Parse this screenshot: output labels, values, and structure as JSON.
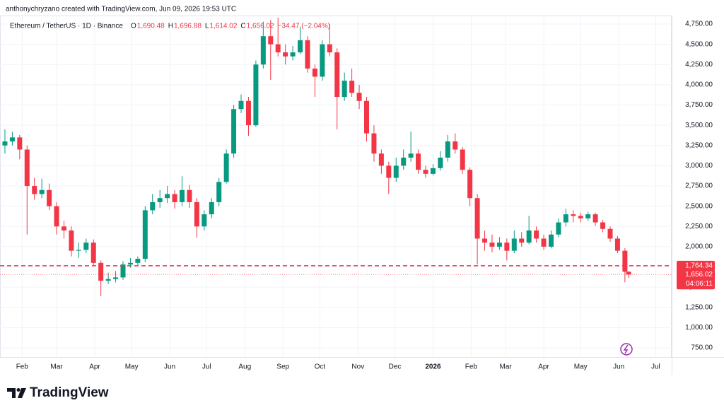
{
  "header": {
    "credit": "anthonychryzano created with TradingView.com, Jun 09, 2026 19:53 UTC",
    "symbol": "Ethereum / TetherUS · 1D · Binance",
    "ohlc": [
      {
        "key": "O",
        "value": "1,690.48"
      },
      {
        "key": "H",
        "value": "1,696.88"
      },
      {
        "key": "L",
        "value": "1,614.02"
      },
      {
        "key": "C",
        "value": "1,656.02"
      }
    ],
    "change": "−34.47 (−2.04%)"
  },
  "logo": "TradingView",
  "chart_data": {
    "type": "candlestick",
    "x": [
      17,
      23,
      29,
      35,
      41,
      47,
      53,
      59,
      65,
      71,
      77,
      83,
      89,
      95,
      101,
      107,
      113,
      119,
      125,
      131,
      137,
      143,
      149,
      155,
      161,
      167,
      173,
      179,
      185,
      191,
      197,
      203,
      209,
      215,
      221,
      227,
      233,
      239,
      245,
      251,
      257,
      263,
      269,
      275,
      281,
      287,
      293,
      299,
      305,
      311,
      317,
      323,
      329,
      335,
      341,
      347,
      353,
      359,
      365,
      371,
      377,
      383,
      389,
      395,
      401,
      407,
      413,
      419,
      425,
      431,
      437,
      443,
      449,
      455,
      461,
      467,
      473,
      479,
      485,
      491,
      497,
      503,
      509,
      515,
      521,
      524
    ],
    "open": [
      3250,
      3300,
      3350,
      3200,
      2750,
      2650,
      2700,
      2500,
      2250,
      2200,
      1950,
      1960,
      2050,
      1800,
      1580,
      1600,
      1620,
      1780,
      1800,
      1850,
      2450,
      2550,
      2600,
      2650,
      2550,
      2700,
      2550,
      2250,
      2400,
      2550,
      2800,
      3150,
      3700,
      3800,
      3500,
      4250,
      4600,
      4500,
      4400,
      4350,
      4400,
      4550,
      4200,
      4100,
      4500,
      4400,
      3850,
      4050,
      3900,
      3800,
      3400,
      3150,
      3000,
      2850,
      3000,
      3100,
      3150,
      2950,
      2900,
      2970,
      3100,
      3300,
      3200,
      2950,
      2600,
      2100,
      2050,
      2000,
      2050,
      1950,
      2100,
      2050,
      2200,
      2100,
      2000,
      2150,
      2300,
      2400,
      2380,
      2350,
      2400,
      2300,
      2220,
      2100,
      1950,
      1690.48
    ],
    "high": [
      3450,
      3420,
      3380,
      3250,
      2850,
      2840,
      2780,
      2550,
      2320,
      2250,
      2050,
      2100,
      2090,
      1830,
      1680,
      1700,
      1820,
      1860,
      1880,
      2500,
      2650,
      2700,
      2750,
      2700,
      2870,
      2760,
      2600,
      2450,
      2600,
      2850,
      3200,
      3750,
      3880,
      3850,
      4300,
      4780,
      4800,
      4830,
      4500,
      4480,
      4720,
      4600,
      4250,
      4550,
      4750,
      4450,
      4150,
      4200,
      4000,
      3850,
      3500,
      3200,
      3050,
      3100,
      3200,
      3420,
      3200,
      3000,
      3020,
      3180,
      3380,
      3400,
      3230,
      2980,
      2650,
      2200,
      2150,
      2120,
      2100,
      2200,
      2180,
      2380,
      2250,
      2150,
      2200,
      2350,
      2470,
      2450,
      2420,
      2430,
      2420,
      2330,
      2250,
      2130,
      1980,
      1696.88
    ],
    "low": [
      3150,
      3250,
      3080,
      2150,
      2580,
      2600,
      2450,
      2150,
      2100,
      1880,
      1860,
      1920,
      1760,
      1390,
      1540,
      1560,
      1590,
      1740,
      1770,
      1810,
      2400,
      2480,
      2540,
      2470,
      2500,
      2480,
      2110,
      2200,
      2350,
      2500,
      2780,
      3100,
      3650,
      3370,
      3480,
      4200,
      4060,
      4350,
      4250,
      4300,
      4380,
      4150,
      3850,
      4050,
      4350,
      3450,
      3800,
      3850,
      3700,
      3300,
      3050,
      2900,
      2650,
      2800,
      2950,
      3050,
      2900,
      2850,
      2880,
      2940,
      3050,
      3150,
      2900,
      2500,
      1780,
      1950,
      1930,
      1960,
      1830,
      1920,
      2000,
      2030,
      2050,
      1960,
      1980,
      2120,
      2250,
      2300,
      2300,
      2320,
      2260,
      2180,
      2060,
      1920,
      1560,
      1614.02
    ],
    "close": [
      3300,
      3350,
      3200,
      2750,
      2650,
      2700,
      2500,
      2250,
      2200,
      1950,
      1960,
      2050,
      1800,
      1580,
      1600,
      1620,
      1780,
      1800,
      1850,
      2450,
      2550,
      2600,
      2650,
      2550,
      2700,
      2550,
      2250,
      2400,
      2550,
      2800,
      3150,
      3700,
      3800,
      3500,
      4250,
      4600,
      4500,
      4400,
      4350,
      4400,
      4550,
      4200,
      4100,
      4500,
      4400,
      3850,
      4050,
      3900,
      3800,
      3400,
      3150,
      3000,
      2850,
      3000,
      3100,
      3150,
      2950,
      2900,
      2970,
      3100,
      3300,
      3200,
      2950,
      2600,
      2100,
      2050,
      2000,
      2050,
      1950,
      2100,
      2050,
      2200,
      2100,
      2000,
      2150,
      2300,
      2400,
      2380,
      2350,
      2400,
      2300,
      2220,
      2100,
      1950,
      1690.48,
      1656.02
    ],
    "up_color": "#089981",
    "down_color": "#f23645",
    "xlim": [
      13,
      559
    ],
    "xticks": [
      {
        "value": 31,
        "label": "Feb"
      },
      {
        "value": 59,
        "label": "Mar"
      },
      {
        "value": 90,
        "label": "Apr"
      },
      {
        "value": 120,
        "label": "May"
      },
      {
        "value": 151,
        "label": "Jun"
      },
      {
        "value": 181,
        "label": "Jul"
      },
      {
        "value": 212,
        "label": "Aug"
      },
      {
        "value": 243,
        "label": "Sep"
      },
      {
        "value": 273,
        "label": "Oct"
      },
      {
        "value": 304,
        "label": "Nov"
      },
      {
        "value": 334,
        "label": "Dec"
      },
      {
        "value": 365,
        "label": "2026"
      },
      {
        "value": 396,
        "label": "Feb"
      },
      {
        "value": 424,
        "label": "Mar"
      },
      {
        "value": 455,
        "label": "Apr"
      },
      {
        "value": 485,
        "label": "May"
      },
      {
        "value": 516,
        "label": "Jun"
      },
      {
        "value": 546,
        "label": "Jul"
      }
    ],
    "ylim": [
      637,
      5047
    ],
    "yticks": [
      {
        "value": 750,
        "label": "750.00"
      },
      {
        "value": 1000,
        "label": "1,000.00"
      },
      {
        "value": 1250,
        "label": "1,250.00"
      },
      {
        "value": 1500,
        "label": "1,500.00"
      },
      {
        "value": 1750,
        "label": "1,750.00"
      },
      {
        "value": 2000,
        "label": "2,000.00"
      },
      {
        "value": 2250,
        "label": "2,250.00"
      },
      {
        "value": 2500,
        "label": "2,500.00"
      },
      {
        "value": 2750,
        "label": "2,750.00"
      },
      {
        "value": 3000,
        "label": "3,000.00"
      },
      {
        "value": 3250,
        "label": "3,250.00"
      },
      {
        "value": 3500,
        "label": "3,500.00"
      },
      {
        "value": 3750,
        "label": "3,750.00"
      },
      {
        "value": 4000,
        "label": "4,000.00"
      },
      {
        "value": 4250,
        "label": "4,250.00"
      },
      {
        "value": 4500,
        "label": "4,500.00"
      },
      {
        "value": 4750,
        "label": "4,750.00"
      }
    ],
    "grid": true,
    "reference_line": {
      "value": 1764.34,
      "label": "1,764.34",
      "color": "#f23645"
    },
    "last_price": {
      "value": 1656.02,
      "label": "1,656.02",
      "color": "#f23645"
    },
    "countdown": "04:06:11"
  }
}
